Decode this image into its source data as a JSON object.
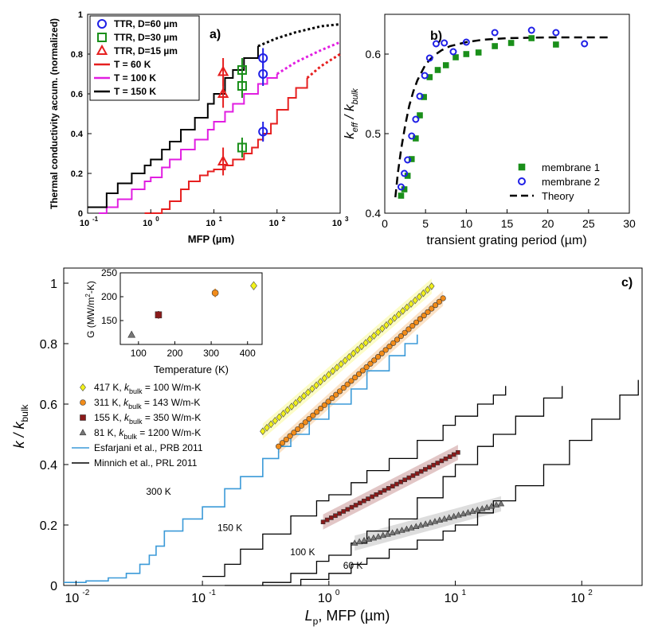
{
  "chart_data": [
    {
      "panel": "a",
      "type": "line",
      "panel_label": "a)",
      "xlabel": "MFP (µm)",
      "ylabel": "Thermal conductivity accum. (normalized)",
      "xscale": "log",
      "xlim": [
        0.1,
        1000
      ],
      "ylim": [
        0,
        1
      ],
      "xticks": [
        "10",
        "10",
        "10",
        "10",
        "10"
      ],
      "xtick_exps": [
        "-1",
        "0",
        "1",
        "2",
        "3"
      ],
      "yticks": [
        "0",
        "0.2",
        "0.4",
        "0.6",
        "0.8",
        "1"
      ],
      "legend": [
        {
          "label": "TTR, D=60 µm",
          "marker": "circle",
          "color": "#1f1fe6"
        },
        {
          "label": "TTR, D=30 µm",
          "marker": "square",
          "color": "#1a8f1a"
        },
        {
          "label": "TTR, D=15 µm",
          "marker": "triangle",
          "color": "#e61f1f"
        },
        {
          "label": "T = 60 K",
          "marker": "line",
          "color": "#e61f1f"
        },
        {
          "label": "T = 100 K",
          "marker": "line",
          "color": "#e11ee1"
        },
        {
          "label": "T = 150 K",
          "marker": "line",
          "color": "#000000"
        }
      ],
      "series": [
        {
          "name": "T = 60 K",
          "color": "#e61f1f",
          "style": "solid",
          "x": [
            0.8,
            1.5,
            2,
            3,
            4,
            6,
            8,
            10,
            15,
            20,
            30,
            40,
            50,
            60,
            80,
            100,
            150,
            200,
            300
          ],
          "y": [
            0,
            0.02,
            0.06,
            0.12,
            0.16,
            0.19,
            0.21,
            0.22,
            0.24,
            0.27,
            0.3,
            0.33,
            0.37,
            0.4,
            0.45,
            0.52,
            0.58,
            0.63,
            0.68
          ]
        },
        {
          "name": "T = 60 K (extrap.)",
          "color": "#e61f1f",
          "style": "dotted",
          "x": [
            300,
            500,
            1000
          ],
          "y": [
            0.68,
            0.74,
            0.8
          ]
        },
        {
          "name": "T = 100 K",
          "color": "#e11ee1",
          "style": "solid",
          "x": [
            0.15,
            0.2,
            0.3,
            0.5,
            0.8,
            1,
            1.5,
            2,
            3,
            5,
            8,
            10,
            15,
            20,
            30,
            50,
            70,
            100
          ],
          "y": [
            0,
            0.03,
            0.07,
            0.12,
            0.16,
            0.18,
            0.23,
            0.27,
            0.32,
            0.37,
            0.42,
            0.46,
            0.51,
            0.55,
            0.6,
            0.65,
            0.68,
            0.7
          ]
        },
        {
          "name": "T = 100 K (extrap.)",
          "color": "#e11ee1",
          "style": "dotted",
          "x": [
            100,
            200,
            500,
            1000
          ],
          "y": [
            0.7,
            0.76,
            0.82,
            0.86
          ]
        },
        {
          "name": "T = 150 K",
          "color": "#000000",
          "style": "solid",
          "x": [
            0.1,
            0.2,
            0.3,
            0.5,
            0.8,
            1,
            1.5,
            2,
            3,
            5,
            8,
            10,
            15,
            20,
            30,
            50
          ],
          "y": [
            0.03,
            0.1,
            0.15,
            0.2,
            0.24,
            0.27,
            0.32,
            0.36,
            0.42,
            0.48,
            0.55,
            0.6,
            0.68,
            0.72,
            0.78,
            0.84
          ]
        },
        {
          "name": "T = 150 K (extrap.)",
          "color": "#000000",
          "style": "dotted",
          "x": [
            50,
            100,
            200,
            500,
            1000
          ],
          "y": [
            0.84,
            0.88,
            0.91,
            0.94,
            0.95
          ]
        }
      ],
      "points": [
        {
          "name": "TTR, D=60 µm",
          "marker": "circle",
          "color": "#1f1fe6",
          "x": [
            60,
            60,
            60
          ],
          "y": [
            0.78,
            0.7,
            0.41
          ],
          "err": [
            0.05,
            0.06,
            0.05
          ]
        },
        {
          "name": "TTR, D=30 µm",
          "marker": "square",
          "color": "#1a8f1a",
          "x": [
            28,
            28,
            28
          ],
          "y": [
            0.72,
            0.64,
            0.33
          ],
          "err": [
            0.06,
            0.06,
            0.05
          ]
        },
        {
          "name": "TTR, D=15 µm",
          "marker": "triangle",
          "color": "#e61f1f",
          "x": [
            14,
            14,
            14
          ],
          "y": [
            0.71,
            0.6,
            0.26
          ],
          "err": [
            0.07,
            0.07,
            0.07
          ]
        }
      ]
    },
    {
      "panel": "b",
      "type": "scatter",
      "panel_label": "b)",
      "xlabel": "transient grating period (µm)",
      "ylabel": "k_eff / k_bulk",
      "ylabel_main": "k",
      "ylabel_sub1": "eff",
      "ylabel_slash": " / k",
      "ylabel_sub2": "bulk",
      "xlim": [
        0,
        30
      ],
      "ylim": [
        0.4,
        0.65
      ],
      "xticks": [
        "0",
        "5",
        "10",
        "15",
        "20",
        "25",
        "30"
      ],
      "yticks": [
        "0.4",
        "0.5",
        "0.6"
      ],
      "legend": [
        {
          "label": "membrane 1",
          "marker": "filled-square",
          "color": "#1a8f1a"
        },
        {
          "label": "membrane 2",
          "marker": "circle",
          "color": "#1f1fe6"
        },
        {
          "label": "Theory",
          "marker": "dashed-line",
          "color": "#000000"
        }
      ],
      "series": [
        {
          "name": "membrane 1",
          "marker": "filled-square",
          "color": "#1a8f1a",
          "x": [
            2.0,
            2.4,
            2.8,
            3.3,
            3.8,
            4.3,
            4.8,
            5.5,
            6.5,
            7.5,
            8.7,
            10,
            11.5,
            13.5,
            15.5,
            18,
            21
          ],
          "y": [
            0.422,
            0.43,
            0.447,
            0.468,
            0.494,
            0.523,
            0.546,
            0.571,
            0.58,
            0.586,
            0.596,
            0.6,
            0.602,
            0.61,
            0.614,
            0.62,
            0.612
          ]
        },
        {
          "name": "membrane 2",
          "marker": "circle",
          "color": "#1f1fe6",
          "x": [
            2.0,
            2.4,
            2.8,
            3.3,
            3.8,
            4.3,
            4.9,
            5.5,
            6.3,
            7.3,
            8.4,
            10,
            13.5,
            18,
            21,
            24.5
          ],
          "y": [
            0.433,
            0.45,
            0.467,
            0.497,
            0.518,
            0.547,
            0.573,
            0.595,
            0.613,
            0.614,
            0.603,
            0.615,
            0.627,
            0.63,
            0.627,
            0.613
          ]
        },
        {
          "name": "Theory",
          "style": "dashed",
          "color": "#000000",
          "x": [
            1.3,
            1.6,
            2,
            2.5,
            3,
            3.5,
            4,
            5,
            6,
            7,
            8,
            10,
            12,
            15,
            20,
            25,
            27.5
          ],
          "y": [
            0.42,
            0.45,
            0.48,
            0.51,
            0.535,
            0.553,
            0.567,
            0.587,
            0.598,
            0.605,
            0.61,
            0.615,
            0.618,
            0.62,
            0.621,
            0.621,
            0.621
          ]
        }
      ]
    },
    {
      "panel": "c",
      "type": "scatter",
      "panel_label": "c)",
      "xlabel_main": "L",
      "xlabel_sub": "p",
      "xlabel_rest": ", MFP (µm)",
      "ylabel_main": "k / k",
      "ylabel_sub": "bulk",
      "xscale": "log",
      "xlim": [
        0.008,
        300
      ],
      "ylim": [
        0,
        1.05
      ],
      "xticks": [
        "10",
        "10",
        "10",
        "10",
        "10"
      ],
      "xtick_exps": [
        "-2",
        "-1",
        "0",
        "1",
        "2"
      ],
      "yticks": [
        "0",
        "0.2",
        "0.4",
        "0.6",
        "0.8",
        "1"
      ],
      "legend": [
        {
          "label_pre": "417 K, ",
          "label_k": "k",
          "label_sub": "bulk",
          "label_post": " = 100 W/m-K",
          "marker": "diamond",
          "color": "#f2f21a"
        },
        {
          "label_pre": "311 K, ",
          "label_k": "k",
          "label_sub": "bulk",
          "label_post": " = 143 W/m-K",
          "marker": "circle",
          "color": "#f28c1a"
        },
        {
          "label_pre": "155 K, ",
          "label_k": "k",
          "label_sub": "bulk",
          "label_post": " = 350 W/m-K",
          "marker": "square",
          "color": "#8b1a1a"
        },
        {
          "label_pre": "81 K, ",
          "label_k": "k",
          "label_sub": "bulk",
          "label_post": " = 1200 W/m-K",
          "marker": "triangle",
          "color": "#777777"
        },
        {
          "label": "Esfarjani et al., PRB 2011",
          "marker": "line",
          "color": "#3b9ad8"
        },
        {
          "label": "Minnich et al., PRL 2011",
          "marker": "line",
          "color": "#000000"
        }
      ],
      "curve_labels": [
        {
          "text": "300 K",
          "x": 0.045,
          "y": 0.3
        },
        {
          "text": "150 K",
          "x": 0.165,
          "y": 0.18
        },
        {
          "text": "100 K",
          "x": 0.62,
          "y": 0.1
        },
        {
          "text": "60 K",
          "x": 1.55,
          "y": 0.055
        }
      ],
      "series": [
        {
          "name": "Esfarjani 300 K",
          "color": "#3b9ad8",
          "x": [
            0.008,
            0.012,
            0.018,
            0.025,
            0.032,
            0.038,
            0.043,
            0.05,
            0.07,
            0.1,
            0.15,
            0.2,
            0.3,
            0.4,
            0.5,
            0.7,
            1,
            1.5,
            2,
            3,
            4,
            5
          ],
          "y": [
            0.01,
            0.015,
            0.025,
            0.04,
            0.07,
            0.1,
            0.13,
            0.18,
            0.22,
            0.26,
            0.32,
            0.36,
            0.42,
            0.46,
            0.5,
            0.55,
            0.6,
            0.65,
            0.71,
            0.76,
            0.8,
            0.83
          ]
        },
        {
          "name": "Minnich 150 K",
          "color": "#000000",
          "x": [
            0.1,
            0.15,
            0.2,
            0.3,
            0.5,
            0.8,
            1,
            1.5,
            2,
            3,
            5,
            8,
            10,
            15,
            20,
            25
          ],
          "y": [
            0.03,
            0.07,
            0.12,
            0.17,
            0.23,
            0.28,
            0.3,
            0.34,
            0.38,
            0.42,
            0.48,
            0.53,
            0.56,
            0.6,
            0.63,
            0.66
          ]
        },
        {
          "name": "Minnich 100 K",
          "color": "#000000",
          "x": [
            0.15,
            0.3,
            0.5,
            0.8,
            1,
            1.5,
            2,
            3,
            5,
            8,
            10,
            15,
            20,
            30,
            50,
            70
          ],
          "y": [
            0,
            0.01,
            0.04,
            0.08,
            0.1,
            0.14,
            0.18,
            0.22,
            0.29,
            0.36,
            0.4,
            0.46,
            0.5,
            0.56,
            0.62,
            0.66
          ]
        },
        {
          "name": "Minnich 60 K",
          "color": "#000000",
          "x": [
            0.3,
            0.6,
            1,
            1.5,
            2,
            3,
            5,
            8,
            10,
            15,
            20,
            30,
            50,
            80,
            120,
            200,
            280
          ],
          "y": [
            0,
            0.02,
            0.04,
            0.07,
            0.09,
            0.12,
            0.15,
            0.18,
            0.2,
            0.24,
            0.28,
            0.33,
            0.4,
            0.48,
            0.55,
            0.63,
            0.68
          ]
        },
        {
          "name": "417 K",
          "marker": "diamond",
          "color": "#f2f21a",
          "x_start": 0.3,
          "x_end": 6.5,
          "y_start": 0.51,
          "y_end": 0.99,
          "count": 42
        },
        {
          "name": "311 K",
          "marker": "circle",
          "color": "#f28c1a",
          "x_start": 0.4,
          "x_end": 8.0,
          "y_start": 0.46,
          "y_end": 0.95,
          "count": 44
        },
        {
          "name": "155 K",
          "marker": "square",
          "color": "#8b1a1a",
          "x_start": 0.9,
          "x_end": 10.5,
          "y_start": 0.21,
          "y_end": 0.44,
          "count": 34
        },
        {
          "name": "81 K",
          "marker": "triangle",
          "color": "#777777",
          "x_start": 1.6,
          "x_end": 23,
          "y_start": 0.14,
          "y_end": 0.27,
          "count": 32
        }
      ],
      "inset": {
        "type": "scatter",
        "xlabel": "Temperature (K)",
        "ylabel_pre": "G (MW/m",
        "ylabel_sup": "2",
        "ylabel_post": "-K)",
        "xlim": [
          50,
          440
        ],
        "ylim": [
          100,
          250
        ],
        "xticks": [
          "100",
          "200",
          "300",
          "400"
        ],
        "yticks": [
          "150",
          "200",
          "250"
        ],
        "points": [
          {
            "x": 81,
            "y": 120,
            "err": 4,
            "marker": "triangle",
            "color": "#777777"
          },
          {
            "x": 155,
            "y": 162,
            "err": 8,
            "marker": "square",
            "color": "#8b1a1a"
          },
          {
            "x": 311,
            "y": 208,
            "err": 9,
            "marker": "circle",
            "color": "#f28c1a"
          },
          {
            "x": 417,
            "y": 223,
            "err": 8,
            "marker": "diamond",
            "color": "#f2f21a"
          }
        ]
      }
    }
  ]
}
